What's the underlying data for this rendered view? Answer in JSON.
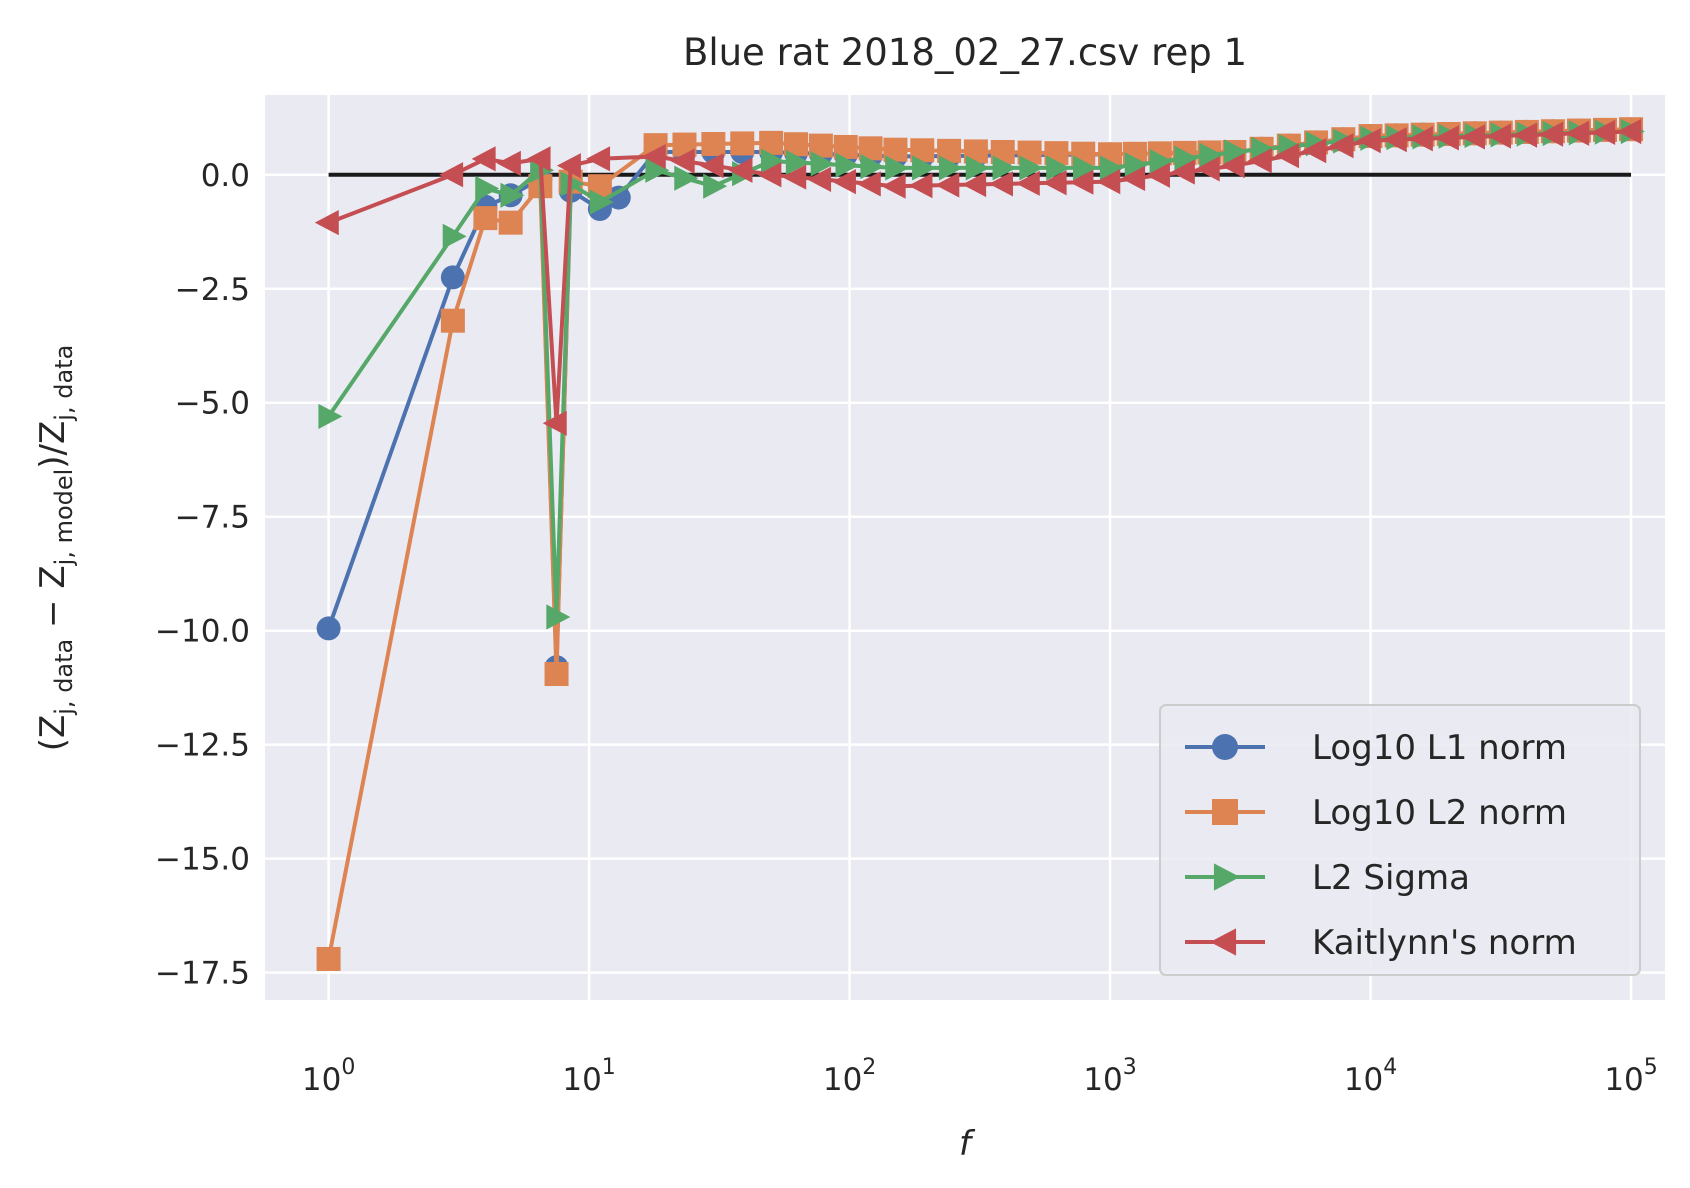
{
  "chart_data": {
    "type": "line",
    "title": "Blue rat 2018_02_27.csv rep 1",
    "xlabel": "f",
    "ylabel": "(Z_j,data − Z_j,model)/Z_j,data",
    "ylabel_parts": {
      "lpar": "(Z",
      "sub1": "j, data",
      "minus": " − Z",
      "sub2": "j, model",
      "mid": ")/Z",
      "sub3": "j, data"
    },
    "xscale": "log",
    "xlim": [
      0.57,
      135000
    ],
    "ylim": [
      -18.1,
      1.75
    ],
    "grid": true,
    "legend_position": "lower-right",
    "x_ticks": [
      {
        "value": 1,
        "base": "10",
        "exp": "0"
      },
      {
        "value": 10,
        "base": "10",
        "exp": "1"
      },
      {
        "value": 100,
        "base": "10",
        "exp": "2"
      },
      {
        "value": 1000,
        "base": "10",
        "exp": "3"
      },
      {
        "value": 10000,
        "base": "10",
        "exp": "4"
      },
      {
        "value": 100000,
        "base": "10",
        "exp": "5"
      }
    ],
    "y_ticks": [
      {
        "value": 0,
        "label": "0.0"
      },
      {
        "value": -2.5,
        "label": "−2.5"
      },
      {
        "value": -5,
        "label": "−5.0"
      },
      {
        "value": -7.5,
        "label": "−7.5"
      },
      {
        "value": -10,
        "label": "−10.0"
      },
      {
        "value": -12.5,
        "label": "−12.5"
      },
      {
        "value": -15,
        "label": "−15.0"
      },
      {
        "value": -17.5,
        "label": "−17.5"
      }
    ],
    "reference_line": {
      "y": 0,
      "x_start": 1,
      "x_end": 100000,
      "color": "#1a1a1a"
    },
    "series": [
      {
        "name": "Log10 L1 norm",
        "color": "#4c72b0",
        "marker": "circle",
        "anchors": [
          [
            1,
            -9.95
          ],
          [
            3,
            -2.25
          ],
          [
            4,
            -0.7
          ],
          [
            5,
            -0.45
          ],
          [
            6.5,
            -0.1
          ],
          [
            7.5,
            -10.8
          ],
          [
            8.5,
            -0.35
          ],
          [
            11,
            -0.75
          ],
          [
            13,
            -0.5
          ],
          [
            18,
            0.5
          ],
          [
            50,
            0.5
          ],
          [
            150,
            0.4
          ],
          [
            1000,
            0.45
          ],
          [
            3000,
            0.5
          ],
          [
            10000,
            0.85
          ],
          [
            100000,
            1.0
          ]
        ]
      },
      {
        "name": "Log10 L2 norm",
        "color": "#dd8452",
        "marker": "square",
        "anchors": [
          [
            1,
            -17.2
          ],
          [
            3,
            -3.2
          ],
          [
            4,
            -0.95
          ],
          [
            5,
            -1.05
          ],
          [
            6.5,
            -0.25
          ],
          [
            7.5,
            -10.95
          ],
          [
            8.5,
            -0.15
          ],
          [
            11,
            -0.25
          ],
          [
            18,
            0.65
          ],
          [
            50,
            0.7
          ],
          [
            150,
            0.55
          ],
          [
            1000,
            0.45
          ],
          [
            3000,
            0.5
          ],
          [
            10000,
            0.85
          ],
          [
            100000,
            1.0
          ]
        ]
      },
      {
        "name": "L2 Sigma",
        "color": "#55a868",
        "marker": "triangle-right",
        "anchors": [
          [
            1,
            -5.3
          ],
          [
            3,
            -1.35
          ],
          [
            4,
            -0.3
          ],
          [
            5,
            -0.45
          ],
          [
            6.5,
            0.1
          ],
          [
            7.5,
            -9.7
          ],
          [
            8.5,
            -0.2
          ],
          [
            11,
            -0.6
          ],
          [
            18,
            0.1
          ],
          [
            30,
            -0.25
          ],
          [
            50,
            0.3
          ],
          [
            150,
            0.15
          ],
          [
            1000,
            0.15
          ],
          [
            3000,
            0.5
          ],
          [
            10000,
            0.8
          ],
          [
            100000,
            0.95
          ]
        ]
      },
      {
        "name": "Kaitlynn's norm",
        "color": "#c44e52",
        "marker": "triangle-left",
        "anchors": [
          [
            1,
            -1.05
          ],
          [
            3,
            0.0
          ],
          [
            4,
            0.35
          ],
          [
            5,
            0.25
          ],
          [
            6.5,
            0.35
          ],
          [
            7.5,
            -5.45
          ],
          [
            8.5,
            0.2
          ],
          [
            11,
            0.35
          ],
          [
            18,
            0.4
          ],
          [
            50,
            0.0
          ],
          [
            150,
            -0.25
          ],
          [
            1000,
            -0.15
          ],
          [
            3000,
            0.2
          ],
          [
            10000,
            0.75
          ],
          [
            100000,
            0.95
          ]
        ]
      }
    ]
  }
}
